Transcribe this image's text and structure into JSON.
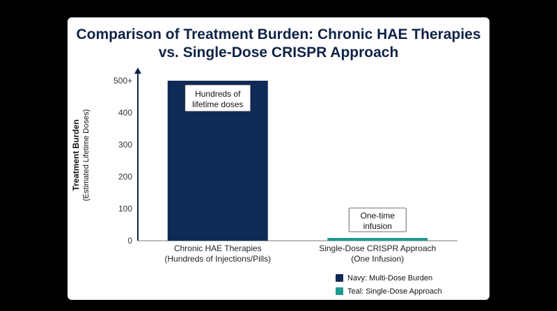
{
  "colors": {
    "navy": "#0f2a55",
    "teal": "#1f9a93",
    "title": "#0f2347",
    "annotation_border": "#444444"
  },
  "chart_data": {
    "type": "bar",
    "title": "Comparison of Treatment Burden: Chronic HAE Therapies vs. Single-Dose CRISPR Approach",
    "ylabel_line1": "Treatment Burden",
    "ylabel_line2": "(Estimated Lifetime Doses)",
    "ylim": [
      0,
      500
    ],
    "yticks": [
      {
        "value": 0,
        "label": "0"
      },
      {
        "value": 100,
        "label": "100"
      },
      {
        "value": 200,
        "label": "200"
      },
      {
        "value": 300,
        "label": "300"
      },
      {
        "value": 400,
        "label": "400"
      },
      {
        "value": 500,
        "label": "500+"
      }
    ],
    "categories": [
      {
        "line1": "Chronic HAE Therapies",
        "line2": "(Hundreds of Injections/Pills)"
      },
      {
        "line1": "Single-Dose CRISPR Approach",
        "line2": "(One Infusion)"
      }
    ],
    "values": [
      500,
      1
    ],
    "bar_colors": [
      "#0f2a55",
      "#1f9a93"
    ],
    "annotations": [
      {
        "line1": "Hundreds of",
        "line2": "lifetime doses"
      },
      {
        "line1": "One-time",
        "line2": "infusion"
      }
    ],
    "legend": [
      {
        "label": "Navy: Multi-Dose Burden",
        "color": "#0f2a55"
      },
      {
        "label": "Teal: Single-Dose Approach",
        "color": "#1f9a93"
      }
    ]
  }
}
